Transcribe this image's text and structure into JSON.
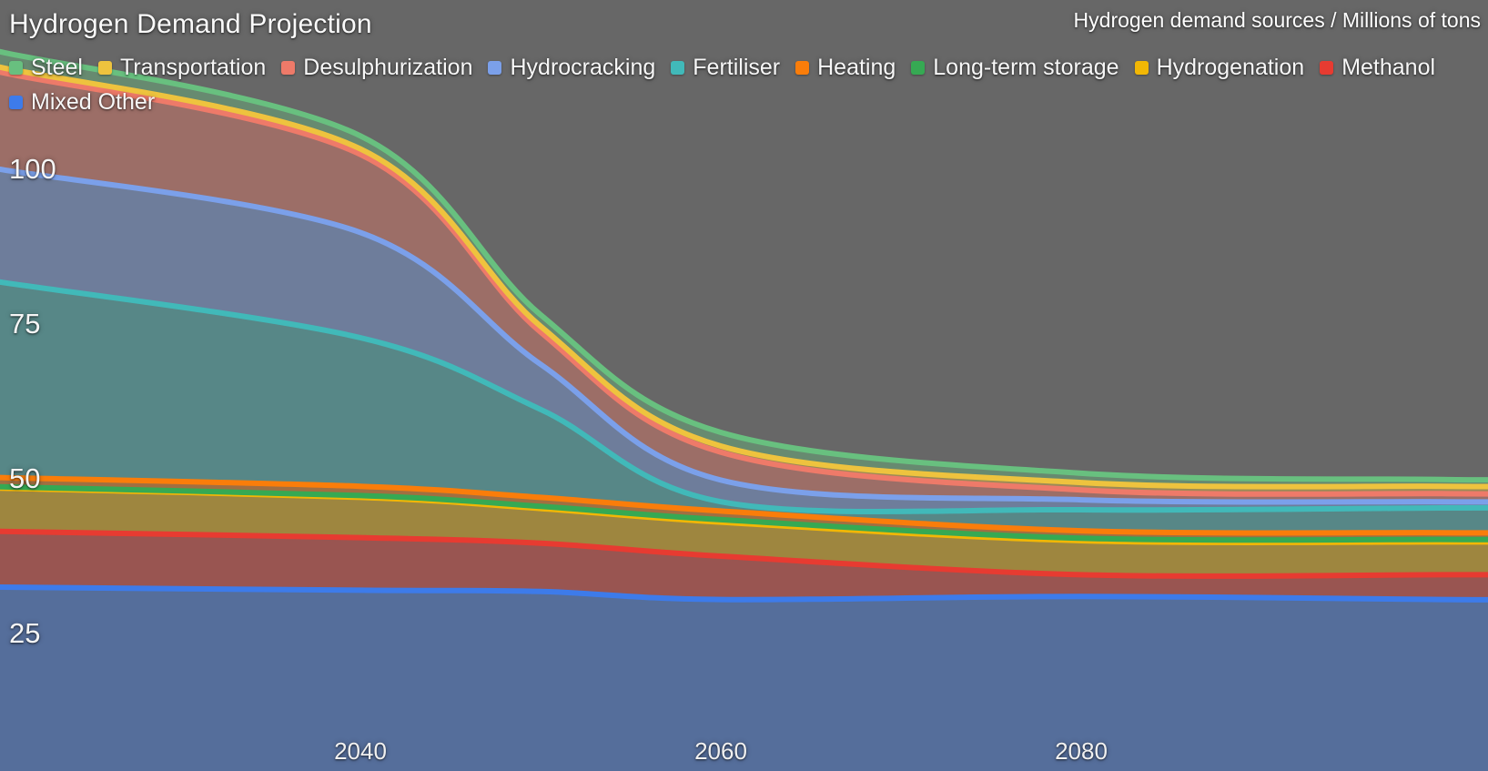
{
  "title": "Hydrogen Demand Projection",
  "subtitle": "Hydrogen demand sources / Millions of tons",
  "background_color": "#676767",
  "text_color": "#f7f7f7",
  "chart_data": {
    "type": "area",
    "stacked": true,
    "title": "Hydrogen Demand Projection",
    "subtitle": "Hydrogen demand sources / Millions of tons",
    "unit": "Millions of tons",
    "legend_position": "top",
    "grid": false,
    "x": [
      2020,
      2040,
      2050,
      2060,
      2080,
      2100
    ],
    "x_axis": {
      "ticks": [
        2040,
        2060,
        2080
      ],
      "tick_labels": [
        "2040",
        "2060",
        "2080"
      ]
    },
    "y_axis": {
      "ticks": [
        25,
        50,
        75,
        100
      ],
      "tick_labels": [
        "25",
        "50",
        "75",
        "100"
      ],
      "ylim": [
        0,
        125
      ]
    },
    "stack_order_bottom_to_top": [
      "Mixed Other",
      "Methanol",
      "Hydrogenation",
      "Long-term storage",
      "Heating",
      "Fertiliser",
      "Hydrocracking",
      "Desulphurization",
      "Transportation",
      "Steel"
    ],
    "series": [
      {
        "name": "Steel",
        "color": "#68c07f",
        "values": [
          2.5,
          2.1,
          1.85,
          2.2,
          1.5,
          1.1
        ]
      },
      {
        "name": "Transportation",
        "color": "#eec33e",
        "values": [
          0.8,
          0.9,
          0.95,
          1.0,
          1.2,
          1.2
        ]
      },
      {
        "name": "Desulphurization",
        "color": "#ee7a69",
        "values": [
          15.7,
          12.6,
          5.2,
          4.5,
          1.6,
          1.3
        ]
      },
      {
        "name": "Hydrocracking",
        "color": "#7ba0ea",
        "values": [
          18.2,
          17.0,
          7.3,
          3.5,
          1.6,
          1.0
        ]
      },
      {
        "name": "Fertiliser",
        "color": "#41b9b9",
        "values": [
          31.6,
          24.0,
          14.2,
          1.5,
          3.4,
          4.0
        ]
      },
      {
        "name": "Heating",
        "color": "#fa7d0a",
        "values": [
          1.5,
          1.5,
          1.45,
          1.4,
          1.2,
          1.1
        ]
      },
      {
        "name": "Long-term storage",
        "color": "#36a953",
        "values": [
          0.2,
          0.3,
          0.35,
          0.4,
          0.4,
          0.4
        ]
      },
      {
        "name": "Hydrogenation",
        "color": "#f2b705",
        "values": [
          7.0,
          6.5,
          5.6,
          5.5,
          5.5,
          5.3
        ]
      },
      {
        "name": "Methanol",
        "color": "#e73b31",
        "values": [
          9.0,
          8.5,
          7.8,
          7.0,
          3.5,
          4.0
        ]
      },
      {
        "name": "Mixed Other",
        "color": "#3d7bea",
        "values": [
          32.5,
          32.0,
          31.8,
          30.5,
          31.0,
          30.5
        ]
      }
    ],
    "totals_by_x": [
      119.0,
      105.4,
      76.5,
      57.5,
      50.9,
      49.9
    ]
  }
}
